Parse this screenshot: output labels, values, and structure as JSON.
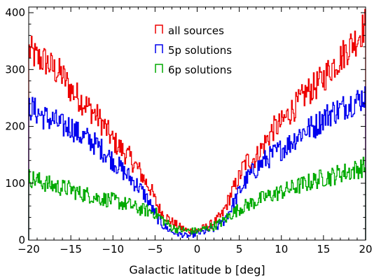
{
  "chart_data": {
    "type": "line",
    "style": "step-histogram",
    "xlabel": "Galactic latitude b [deg]",
    "ylabel": "",
    "title": "",
    "xlim": [
      -20,
      20
    ],
    "ylim": [
      0,
      410
    ],
    "x_ticks": [
      -20,
      -15,
      -10,
      -5,
      0,
      5,
      10,
      15,
      20
    ],
    "x_tick_labels": [
      "−20",
      "−15",
      "−10",
      "−5",
      "0",
      "5",
      "10",
      "15",
      "20"
    ],
    "y_ticks": [
      0,
      100,
      200,
      300,
      400
    ],
    "y_tick_labels": [
      "0",
      "100",
      "200",
      "300",
      "400"
    ],
    "grid": false,
    "legend_position": "top-center",
    "series": [
      {
        "name": "all sources",
        "color": "#ee0000",
        "points": [
          [
            -20,
            335
          ],
          [
            -19,
            320
          ],
          [
            -18,
            315
          ],
          [
            -17,
            300
          ],
          [
            -16,
            290
          ],
          [
            -15,
            265
          ],
          [
            -14,
            250
          ],
          [
            -13,
            235
          ],
          [
            -12,
            220
          ],
          [
            -11,
            200
          ],
          [
            -10,
            175
          ],
          [
            -9,
            160
          ],
          [
            -8,
            145
          ],
          [
            -7,
            125
          ],
          [
            -6,
            100
          ],
          [
            -5.5,
            90
          ],
          [
            -5,
            70
          ],
          [
            -4.5,
            55
          ],
          [
            -4,
            45
          ],
          [
            -3,
            32
          ],
          [
            -2,
            22
          ],
          [
            -1,
            16
          ],
          [
            0,
            17
          ],
          [
            1,
            22
          ],
          [
            2,
            30
          ],
          [
            3,
            45
          ],
          [
            4,
            80
          ],
          [
            5,
            110
          ],
          [
            5.5,
            130
          ],
          [
            6,
            140
          ],
          [
            7,
            145
          ],
          [
            8,
            170
          ],
          [
            9,
            195
          ],
          [
            10,
            205
          ],
          [
            11,
            225
          ],
          [
            12,
            240
          ],
          [
            13,
            260
          ],
          [
            14,
            270
          ],
          [
            15,
            285
          ],
          [
            16,
            305
          ],
          [
            17,
            320
          ],
          [
            18,
            340
          ],
          [
            19,
            355
          ],
          [
            20,
            380
          ]
        ]
      },
      {
        "name": "5p solutions",
        "color": "#0000ee",
        "points": [
          [
            -20,
            235
          ],
          [
            -19,
            225
          ],
          [
            -18,
            215
          ],
          [
            -17,
            210
          ],
          [
            -16,
            200
          ],
          [
            -15,
            200
          ],
          [
            -14,
            185
          ],
          [
            -13,
            178
          ],
          [
            -12,
            168
          ],
          [
            -11,
            155
          ],
          [
            -10,
            140
          ],
          [
            -9,
            125
          ],
          [
            -8,
            110
          ],
          [
            -7,
            95
          ],
          [
            -6,
            75
          ],
          [
            -5,
            45
          ],
          [
            -4,
            25
          ],
          [
            -3,
            15
          ],
          [
            -2,
            10
          ],
          [
            -1,
            7
          ],
          [
            0,
            12
          ],
          [
            1,
            15
          ],
          [
            2,
            20
          ],
          [
            3,
            30
          ],
          [
            4,
            55
          ],
          [
            5,
            85
          ],
          [
            6,
            110
          ],
          [
            7,
            125
          ],
          [
            8,
            140
          ],
          [
            9,
            150
          ],
          [
            10,
            160
          ],
          [
            11,
            170
          ],
          [
            12,
            185
          ],
          [
            13,
            195
          ],
          [
            14,
            200
          ],
          [
            15,
            215
          ],
          [
            16,
            225
          ],
          [
            17,
            230
          ],
          [
            18,
            240
          ],
          [
            19,
            245
          ],
          [
            20,
            255
          ]
        ]
      },
      {
        "name": "6p solutions",
        "color": "#00aa00",
        "points": [
          [
            -20,
            110
          ],
          [
            -19,
            105
          ],
          [
            -18,
            100
          ],
          [
            -17,
            95
          ],
          [
            -16,
            92
          ],
          [
            -15,
            90
          ],
          [
            -14,
            82
          ],
          [
            -13,
            80
          ],
          [
            -12,
            75
          ],
          [
            -11,
            72
          ],
          [
            -10,
            70
          ],
          [
            -9,
            65
          ],
          [
            -8,
            62
          ],
          [
            -7,
            55
          ],
          [
            -6,
            52
          ],
          [
            -5,
            48
          ],
          [
            -4,
            35
          ],
          [
            -3,
            22
          ],
          [
            -2,
            18
          ],
          [
            -1,
            16
          ],
          [
            0,
            16
          ],
          [
            1,
            20
          ],
          [
            2,
            25
          ],
          [
            3,
            32
          ],
          [
            4,
            45
          ],
          [
            5,
            55
          ],
          [
            6,
            62
          ],
          [
            7,
            68
          ],
          [
            8,
            75
          ],
          [
            9,
            80
          ],
          [
            10,
            85
          ],
          [
            11,
            90
          ],
          [
            12,
            95
          ],
          [
            13,
            100
          ],
          [
            14,
            105
          ],
          [
            15,
            110
          ],
          [
            16,
            112
          ],
          [
            17,
            118
          ],
          [
            18,
            120
          ],
          [
            19,
            125
          ],
          [
            20,
            130
          ]
        ]
      }
    ]
  }
}
